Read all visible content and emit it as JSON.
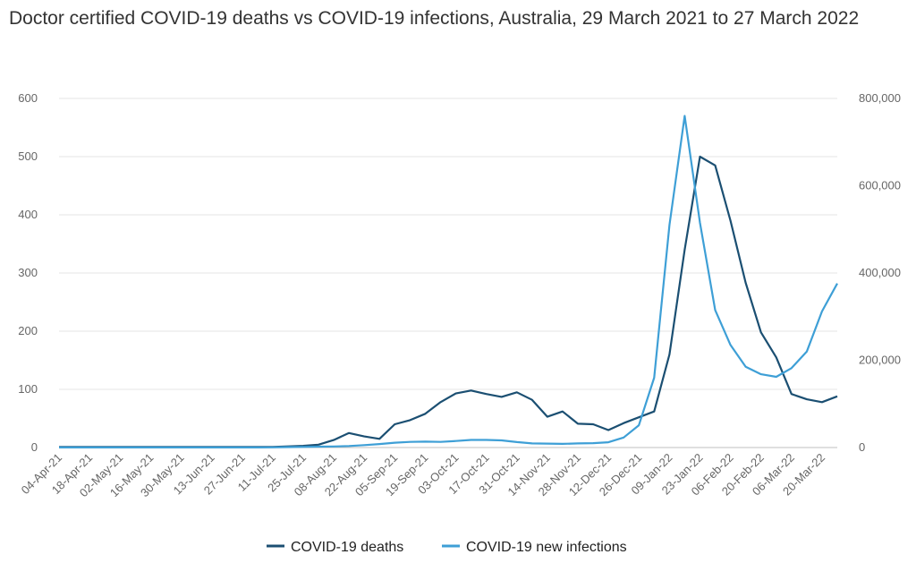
{
  "chart_data": {
    "type": "line",
    "title": "Doctor certified COVID-19 deaths vs COVID-19 infections, Australia, 29 March 2021 to 27 March 2022",
    "x": [
      "04-Apr-21",
      "11-Apr-21",
      "18-Apr-21",
      "25-Apr-21",
      "02-May-21",
      "09-May-21",
      "16-May-21",
      "23-May-21",
      "30-May-21",
      "06-Jun-21",
      "13-Jun-21",
      "20-Jun-21",
      "27-Jun-21",
      "04-Jul-21",
      "11-Jul-21",
      "18-Jul-21",
      "25-Jul-21",
      "01-Aug-21",
      "08-Aug-21",
      "15-Aug-21",
      "22-Aug-21",
      "29-Aug-21",
      "05-Sep-21",
      "12-Sep-21",
      "19-Sep-21",
      "26-Sep-21",
      "03-Oct-21",
      "10-Oct-21",
      "17-Oct-21",
      "24-Oct-21",
      "31-Oct-21",
      "07-Nov-21",
      "14-Nov-21",
      "21-Nov-21",
      "28-Nov-21",
      "05-Dec-21",
      "12-Dec-21",
      "19-Dec-21",
      "26-Dec-21",
      "02-Jan-22",
      "09-Jan-22",
      "16-Jan-22",
      "23-Jan-22",
      "30-Jan-22",
      "06-Feb-22",
      "13-Feb-22",
      "20-Feb-22",
      "27-Feb-22",
      "06-Mar-22",
      "13-Mar-22",
      "20-Mar-22",
      "27-Mar-22"
    ],
    "x_tick_labels": [
      "04-Apr-21",
      "18-Apr-21",
      "02-May-21",
      "16-May-21",
      "30-May-21",
      "13-Jun-21",
      "27-Jun-21",
      "11-Jul-21",
      "25-Jul-21",
      "08-Aug-21",
      "22-Aug-21",
      "05-Sep-21",
      "19-Sep-21",
      "03-Oct-21",
      "17-Oct-21",
      "31-Oct-21",
      "14-Nov-21",
      "28-Nov-21",
      "12-Dec-21",
      "26-Dec-21",
      "09-Jan-22",
      "23-Jan-22",
      "06-Feb-22",
      "20-Feb-22",
      "06-Mar-22",
      "20-Mar-22"
    ],
    "y_left": {
      "ticks": [
        "0",
        "100",
        "200",
        "300",
        "400",
        "500",
        "600"
      ],
      "ylim": [
        0,
        600
      ]
    },
    "y_right": {
      "ticks": [
        "0",
        "200,000",
        "400,000",
        "600,000",
        "800,000"
      ],
      "ylim": [
        0,
        800000
      ]
    },
    "grid": true,
    "legend_position": "bottom",
    "series": [
      {
        "name": "COVID-19 deaths",
        "axis": "left",
        "color": "#1b4f72",
        "values": [
          1,
          1,
          1,
          1,
          1,
          1,
          1,
          1,
          1,
          1,
          1,
          1,
          1,
          1,
          1,
          2,
          3,
          5,
          13,
          25,
          19,
          15,
          40,
          47,
          58,
          78,
          93,
          98,
          92,
          87,
          95,
          82,
          53,
          62,
          41,
          40,
          30,
          42,
          52,
          62,
          160,
          340,
          500,
          485,
          390,
          283,
          198,
          155,
          92,
          83,
          78,
          88
        ]
      },
      {
        "name": "COVID-19 new infections",
        "axis": "right",
        "color": "#3e9fd6",
        "values": [
          300,
          200,
          300,
          200,
          200,
          200,
          200,
          200,
          200,
          200,
          200,
          200,
          200,
          300,
          500,
          1000,
          1500,
          2000,
          2500,
          3500,
          5500,
          8000,
          11000,
          13000,
          13500,
          13000,
          15000,
          17500,
          17500,
          16500,
          12500,
          9500,
          9000,
          8500,
          9500,
          10000,
          12000,
          23000,
          51000,
          160000,
          510000,
          760000,
          515000,
          315000,
          235000,
          185000,
          168000,
          162000,
          182000,
          220000,
          312000,
          376000
        ]
      }
    ]
  }
}
